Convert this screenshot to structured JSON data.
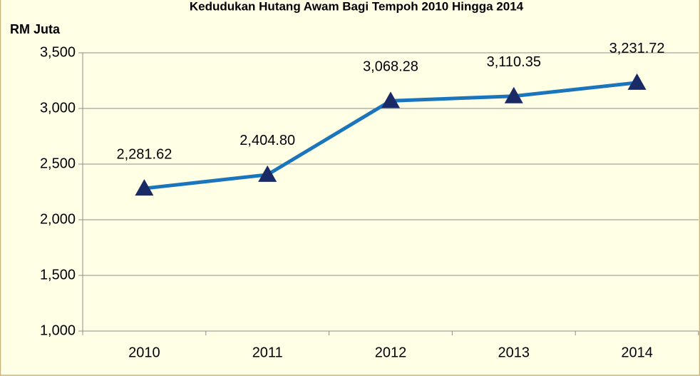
{
  "chart_data": {
    "type": "line",
    "title": "Kedudukan Hutang Awam Bagi Tempoh 2010 Hingga 2014",
    "y_label": "RM Juta",
    "categories": [
      "2010",
      "2011",
      "2012",
      "2013",
      "2014"
    ],
    "series": [
      {
        "name": "Hutang Awam",
        "color": "#1b75bc",
        "marker_color": "#1a2a66",
        "values": [
          2281.62,
          2404.8,
          3068.28,
          3110.35,
          3231.72
        ],
        "value_labels": [
          "2,281.62",
          "2,404.80",
          "3,068.28",
          "3,110.35",
          "3,231.72"
        ]
      }
    ],
    "ylim": [
      1000,
      3500
    ],
    "yticks": [
      {
        "value": 1000,
        "label": "1,000"
      },
      {
        "value": 1500,
        "label": "1,500"
      },
      {
        "value": 2000,
        "label": "2,000"
      },
      {
        "value": 2500,
        "label": "2,500"
      },
      {
        "value": 3000,
        "label": "3,000"
      },
      {
        "value": 3500,
        "label": "3,500"
      }
    ],
    "grid": true
  }
}
